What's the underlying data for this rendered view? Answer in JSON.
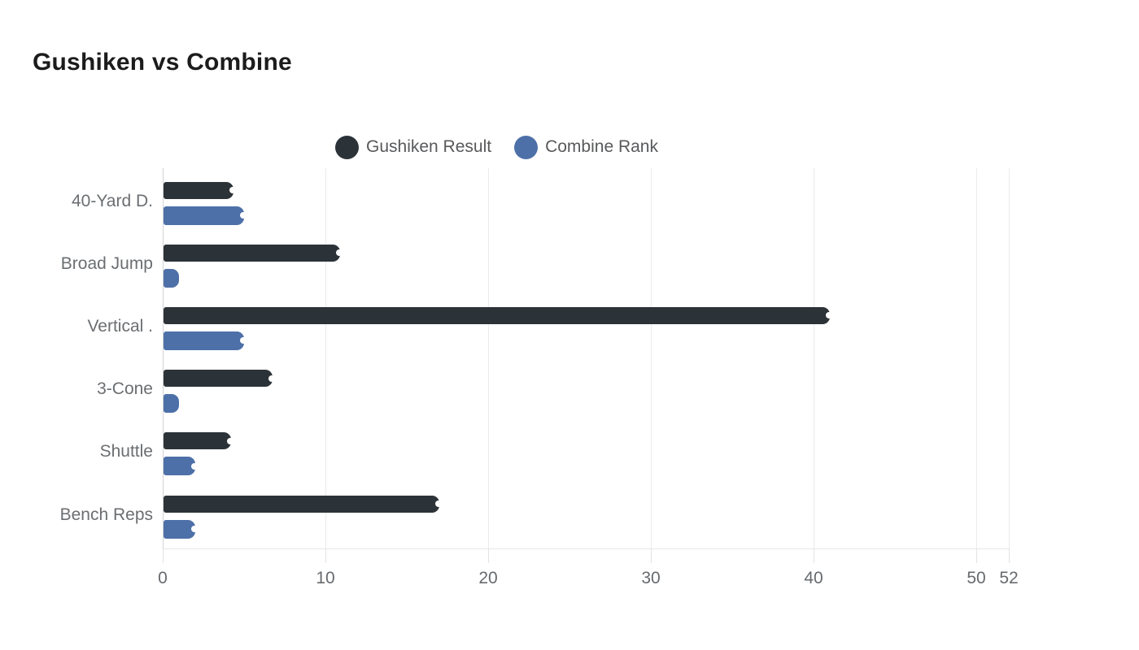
{
  "page": {
    "title": "Gushiken vs Combine"
  },
  "chart_data": {
    "type": "bar",
    "orientation": "horizontal",
    "title": "Gushiken vs Combine",
    "categories": [
      "40-Yard D.",
      "Broad Jump",
      "Vertical .",
      "3-Cone",
      "Shuttle",
      "Bench Reps"
    ],
    "series": [
      {
        "name": "Gushiken Result",
        "color": "#2c3338",
        "values": [
          4.35,
          10.9,
          41,
          6.75,
          4.2,
          17
        ]
      },
      {
        "name": "Combine Rank",
        "color": "#4d70a8",
        "values": [
          5,
          1,
          5,
          1,
          2,
          2
        ]
      }
    ],
    "xlabel": "",
    "ylabel": "",
    "x_ticks": [
      0,
      10,
      20,
      30,
      40,
      50,
      52
    ],
    "xlim": [
      0,
      52
    ],
    "grid": true,
    "legend_position": "top-center",
    "background": "#ffffff",
    "text_color": "#666a6e"
  }
}
